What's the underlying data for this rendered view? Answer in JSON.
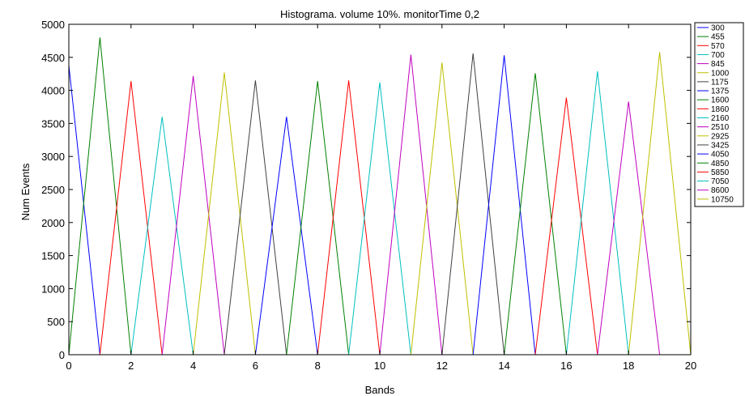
{
  "chart_data": {
    "type": "line",
    "title": "Histograma. volume 10%. monitorTime 0,2",
    "xlabel": "Bands",
    "ylabel": "Num Events",
    "xlim": [
      0,
      20
    ],
    "ylim": [
      0,
      5000
    ],
    "xticks": [
      "0",
      "2",
      "4",
      "6",
      "8",
      "10",
      "12",
      "14",
      "16",
      "18",
      "20"
    ],
    "yticks": [
      "0",
      "500",
      "1000",
      "1500",
      "2000",
      "2500",
      "3000",
      "3500",
      "4000",
      "4500",
      "5000"
    ],
    "grid": false,
    "legend_position": "top-right-outside",
    "series": [
      {
        "name": "300",
        "color": "#0000ff",
        "peak_band": 0,
        "peak": 4380
      },
      {
        "name": "455",
        "color": "#008000",
        "peak_band": 1,
        "peak": 4800
      },
      {
        "name": "570",
        "color": "#ff0000",
        "peak_band": 2,
        "peak": 4140
      },
      {
        "name": "700",
        "color": "#00bfbf",
        "peak_band": 3,
        "peak": 3600
      },
      {
        "name": "845",
        "color": "#bf00bf",
        "peak_band": 4,
        "peak": 4220
      },
      {
        "name": "1000",
        "color": "#bfbf00",
        "peak_band": 5,
        "peak": 4270
      },
      {
        "name": "1175",
        "color": "#404040",
        "peak_band": 6,
        "peak": 4150
      },
      {
        "name": "1375",
        "color": "#0000ff",
        "peak_band": 7,
        "peak": 3600
      },
      {
        "name": "1600",
        "color": "#008000",
        "peak_band": 8,
        "peak": 4140
      },
      {
        "name": "1860",
        "color": "#ff0000",
        "peak_band": 9,
        "peak": 4150
      },
      {
        "name": "2160",
        "color": "#00bfbf",
        "peak_band": 10,
        "peak": 4120
      },
      {
        "name": "2510",
        "color": "#bf00bf",
        "peak_band": 11,
        "peak": 4540
      },
      {
        "name": "2925",
        "color": "#bfbf00",
        "peak_band": 12,
        "peak": 4420
      },
      {
        "name": "3425",
        "color": "#404040",
        "peak_band": 13,
        "peak": 4560
      },
      {
        "name": "4050",
        "color": "#0000ff",
        "peak_band": 14,
        "peak": 4530
      },
      {
        "name": "4850",
        "color": "#008000",
        "peak_band": 15,
        "peak": 4260
      },
      {
        "name": "5850",
        "color": "#ff0000",
        "peak_band": 16,
        "peak": 3890
      },
      {
        "name": "7050",
        "color": "#00bfbf",
        "peak_band": 17,
        "peak": 4290
      },
      {
        "name": "8600",
        "color": "#bf00bf",
        "peak_band": 18,
        "peak": 3830
      },
      {
        "name": "10750",
        "color": "#bfbf00",
        "peak_band": 19,
        "peak": 4580
      }
    ]
  }
}
